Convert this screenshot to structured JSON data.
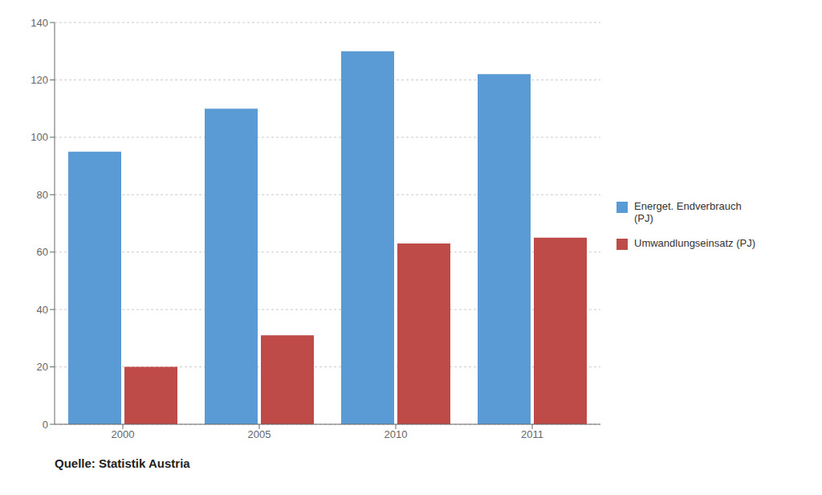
{
  "chart_data": {
    "type": "bar",
    "categories": [
      "2000",
      "2005",
      "2010",
      "2011"
    ],
    "series": [
      {
        "name": "Energet. Endverbrauch\n(PJ)",
        "color": "#5B9BD5",
        "values": [
          95,
          110,
          130,
          122
        ]
      },
      {
        "name": "Umwandlungseinsatz (PJ)",
        "color": "#BE4B48",
        "values": [
          20,
          31,
          63,
          65
        ]
      }
    ],
    "ylim": [
      0,
      140
    ],
    "yticks": [
      0,
      20,
      40,
      60,
      80,
      100,
      120,
      140
    ],
    "grid": true,
    "legend": "right",
    "annotations": [
      "Quelle: Statistik Austria"
    ]
  }
}
